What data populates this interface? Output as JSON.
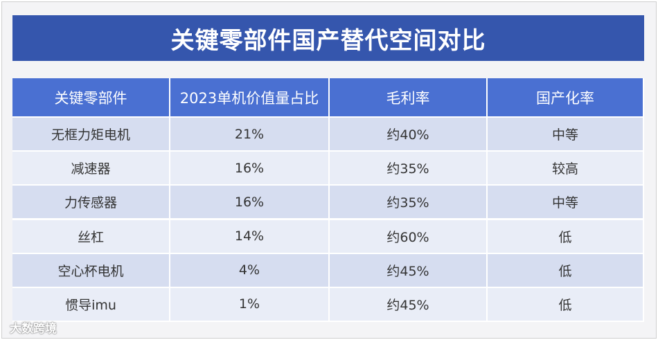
{
  "header": {
    "title": "关键零部件国产替代空间对比"
  },
  "table": {
    "columns": [
      "关键零部件",
      "2023单机价值量占比",
      "毛利率",
      "国产化率"
    ],
    "rows": [
      [
        "无框力矩电机",
        "21%",
        "约40%",
        "中等"
      ],
      [
        "减速器",
        "16%",
        "约35%",
        "较高"
      ],
      [
        "力传感器",
        "16%",
        "约35%",
        "中等"
      ],
      [
        "丝杠",
        "14%",
        "约60%",
        "低"
      ],
      [
        "空心杯电机",
        "4%",
        "约45%",
        "低"
      ],
      [
        "惯导imu",
        "1%",
        "约45%",
        "低"
      ]
    ]
  },
  "watermark": "大数跨境"
}
